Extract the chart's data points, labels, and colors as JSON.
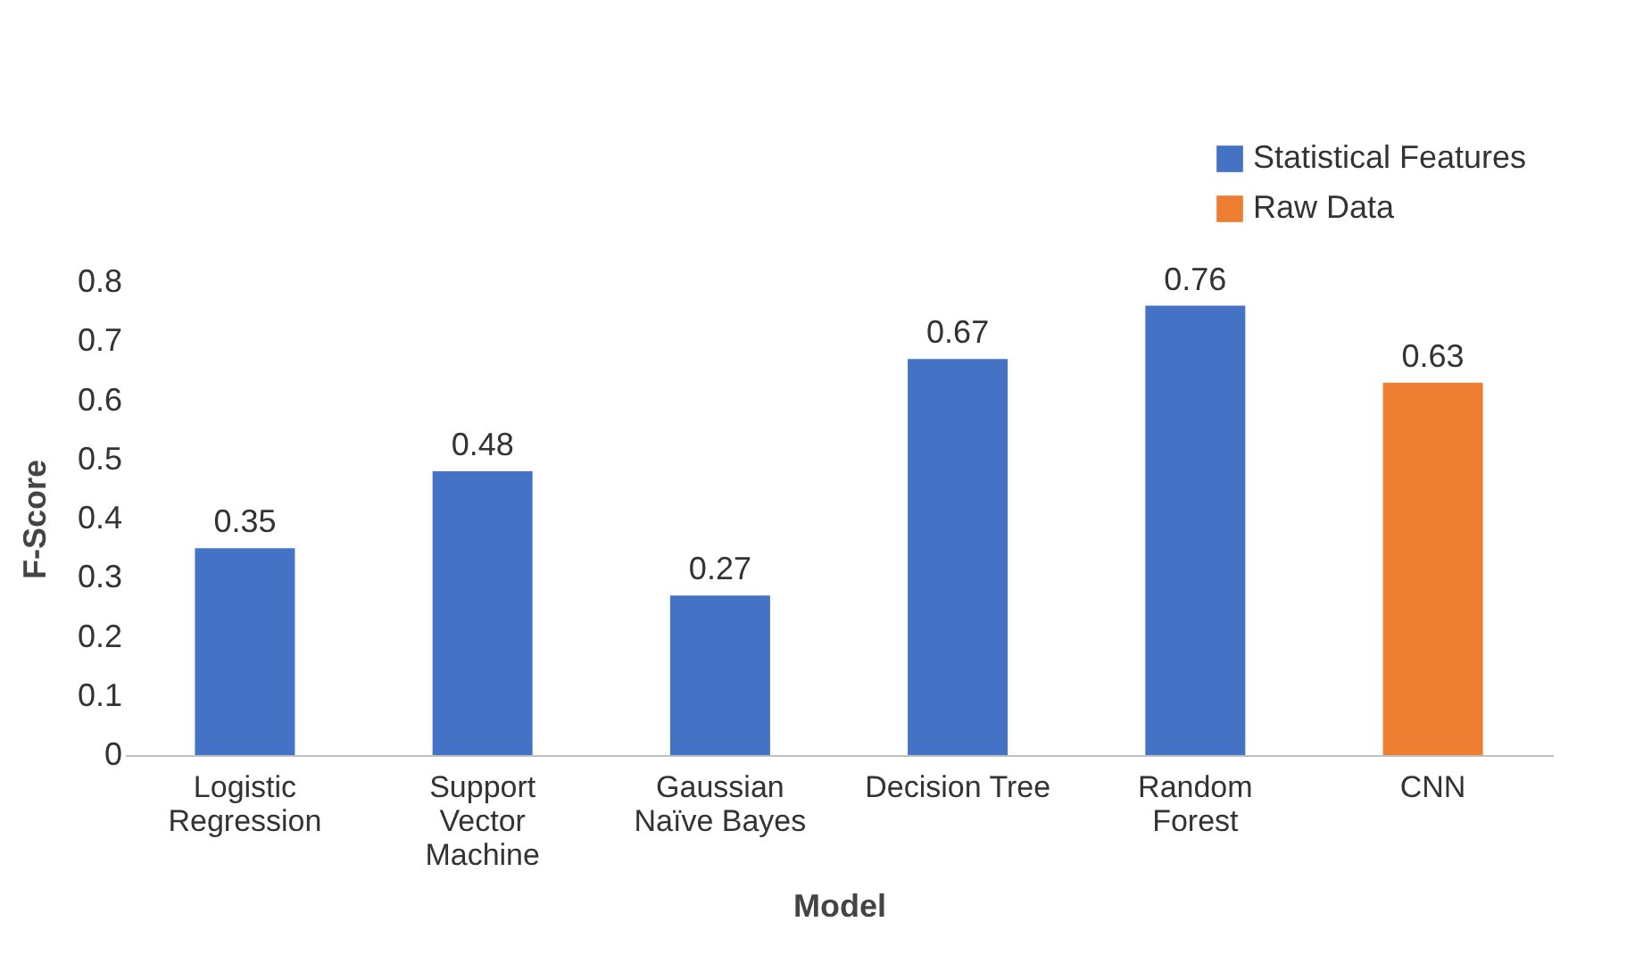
{
  "chart_data": {
    "type": "bar",
    "xlabel": "Model",
    "ylabel": "F-Score",
    "categories": [
      "Logistic\nRegression",
      "Support\nVector\nMachine",
      "Gaussian\nNaïve Bayes",
      "Decision Tree",
      "Random\nForest",
      "CNN"
    ],
    "series": [
      {
        "name": "Statistical Features",
        "color": "#4472c4",
        "values": [
          0.35,
          0.48,
          0.27,
          0.67,
          0.76,
          null
        ]
      },
      {
        "name": "Raw Data",
        "color": "#ed7d31",
        "values": [
          null,
          null,
          null,
          null,
          null,
          0.63
        ]
      }
    ],
    "ylim": [
      0,
      0.8
    ],
    "yticks": [
      0,
      0.1,
      0.2,
      0.3,
      0.4,
      0.5,
      0.6,
      0.7,
      0.8
    ],
    "data_labels": true,
    "grid": false,
    "legend": "top right"
  }
}
